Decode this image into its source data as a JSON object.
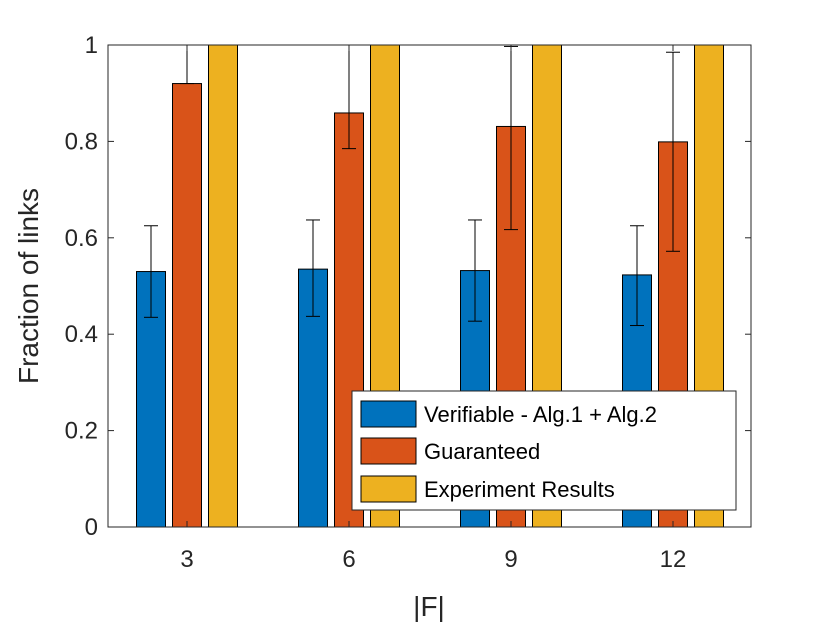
{
  "chart_data": {
    "type": "bar",
    "title": "",
    "xlabel": "|F|",
    "ylabel": "Fraction of links",
    "categories": [
      "3",
      "6",
      "9",
      "12"
    ],
    "ylim": [
      0,
      1
    ],
    "yticks": [
      0,
      0.2,
      0.4,
      0.6,
      0.8,
      1
    ],
    "ytick_labels": [
      "0",
      "0.2",
      "0.4",
      "0.6",
      "0.8",
      "1"
    ],
    "grid": false,
    "legend_position": "bottom-right",
    "series": [
      {
        "name": "Verifiable - Alg.1 + Alg.2",
        "color": "#0072BD",
        "values": [
          0.53,
          0.535,
          0.532,
          0.523
        ],
        "err_low": [
          0.435,
          0.437,
          0.427,
          0.418
        ],
        "err_high": [
          0.625,
          0.637,
          0.637,
          0.625
        ]
      },
      {
        "name": "Guaranteed",
        "color": "#D95319",
        "values": [
          0.92,
          0.859,
          0.831,
          0.799
        ],
        "err_low": [
          0.92,
          0.785,
          0.617,
          0.572
        ],
        "err_high": [
          1.0,
          1.0,
          0.997,
          0.985
        ]
      },
      {
        "name": "Experiment Results",
        "color": "#EDB120",
        "values": [
          1.0,
          1.0,
          1.0,
          1.0
        ]
      }
    ]
  }
}
